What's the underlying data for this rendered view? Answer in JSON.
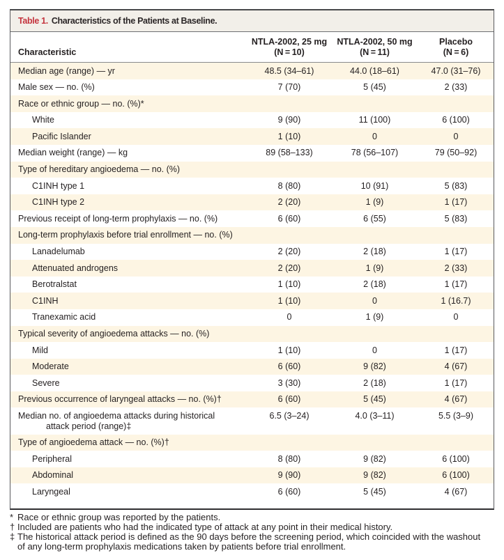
{
  "table": {
    "title_label": "Table 1.",
    "title_text": "Characteristics of the Patients at Baseline.",
    "characteristic_header": "Characteristic",
    "column_headers": [
      "NTLA-2002, 25 mg\n(N = 10)",
      "NTLA-2002, 50 mg\n(N = 11)",
      "Placebo\n(N = 6)"
    ],
    "rows": [
      {
        "label": "Median age (range) — yr",
        "indent": 0,
        "values": [
          "48.5 (34–61)",
          "44.0 (18–61)",
          "47.0 (31–76)"
        ]
      },
      {
        "label": "Male sex — no. (%)",
        "indent": 0,
        "values": [
          "7 (70)",
          "5 (45)",
          "2 (33)"
        ]
      },
      {
        "label": "Race or ethnic group — no. (%)*",
        "indent": 0,
        "values": [
          "",
          "",
          ""
        ]
      },
      {
        "label": "White",
        "indent": 1,
        "values": [
          "9 (90)",
          "11 (100)",
          "6 (100)"
        ]
      },
      {
        "label": "Pacific Islander",
        "indent": 1,
        "values": [
          "1 (10)",
          "0",
          "0"
        ]
      },
      {
        "label": "Median weight (range) — kg",
        "indent": 0,
        "values": [
          "89 (58–133)",
          "78 (56–107)",
          "79 (50–92)"
        ]
      },
      {
        "label": "Type of hereditary angioedema — no. (%)",
        "indent": 0,
        "values": [
          "",
          "",
          ""
        ]
      },
      {
        "label": "C1INH type 1",
        "indent": 1,
        "values": [
          "8 (80)",
          "10 (91)",
          "5 (83)"
        ]
      },
      {
        "label": "C1INH type 2",
        "indent": 1,
        "values": [
          "2 (20)",
          "1 (9)",
          "1 (17)"
        ]
      },
      {
        "label": "Previous receipt of long-term prophylaxis — no. (%)",
        "indent": 0,
        "values": [
          "6 (60)",
          "6 (55)",
          "5 (83)"
        ]
      },
      {
        "label": "Long-term prophylaxis before trial enrollment — no. (%)",
        "indent": 0,
        "values": [
          "",
          "",
          ""
        ]
      },
      {
        "label": "Lanadelumab",
        "indent": 1,
        "values": [
          "2 (20)",
          "2 (18)",
          "1 (17)"
        ]
      },
      {
        "label": "Attenuated androgens",
        "indent": 1,
        "values": [
          "2 (20)",
          "1 (9)",
          "2 (33)"
        ]
      },
      {
        "label": "Berotralstat",
        "indent": 1,
        "values": [
          "1 (10)",
          "2 (18)",
          "1 (17)"
        ]
      },
      {
        "label": "C1INH",
        "indent": 1,
        "values": [
          "1 (10)",
          "0",
          "1 (16.7)"
        ]
      },
      {
        "label": "Tranexamic acid",
        "indent": 1,
        "values": [
          "0",
          "1 (9)",
          "0"
        ]
      },
      {
        "label": "Typical severity of angioedema attacks — no. (%)",
        "indent": 0,
        "values": [
          "",
          "",
          ""
        ]
      },
      {
        "label": "Mild",
        "indent": 1,
        "values": [
          "1 (10)",
          "0",
          "1 (17)"
        ]
      },
      {
        "label": "Moderate",
        "indent": 1,
        "values": [
          "6 (60)",
          "9 (82)",
          "4 (67)"
        ]
      },
      {
        "label": "Severe",
        "indent": 1,
        "values": [
          "3 (30)",
          "2 (18)",
          "1 (17)"
        ]
      },
      {
        "label": "Previous occurrence of laryngeal attacks — no. (%)†",
        "indent": 0,
        "values": [
          "6 (60)",
          "5 (45)",
          "4 (67)"
        ]
      },
      {
        "label": "Median no. of angioedema attacks during historical\nattack period (range)‡",
        "indent": 0,
        "values": [
          "6.5 (3–24)",
          "4.0 (3–11)",
          "5.5 (3–9)"
        ]
      },
      {
        "label": "Type of angioedema attack — no. (%)†",
        "indent": 0,
        "values": [
          "",
          "",
          ""
        ]
      },
      {
        "label": "Peripheral",
        "indent": 1,
        "values": [
          "8 (80)",
          "9 (82)",
          "6 (100)"
        ]
      },
      {
        "label": "Abdominal",
        "indent": 1,
        "values": [
          "9 (90)",
          "9 (82)",
          "6 (100)"
        ]
      },
      {
        "label": "Laryngeal",
        "indent": 1,
        "values": [
          "6 (60)",
          "5 (45)",
          "4 (67)"
        ]
      }
    ]
  },
  "footnotes": [
    {
      "symbol": "*",
      "text": "Race or ethnic group was reported by the patients."
    },
    {
      "symbol": "†",
      "text": "Included are patients who had the indicated type of attack at any point in their medical history."
    },
    {
      "symbol": "‡",
      "text": "The historical attack period is defined as the 90 days before the screening period, which coincided with the washout of any long-term prophylaxis medications taken by patients before trial enrollment."
    }
  ]
}
